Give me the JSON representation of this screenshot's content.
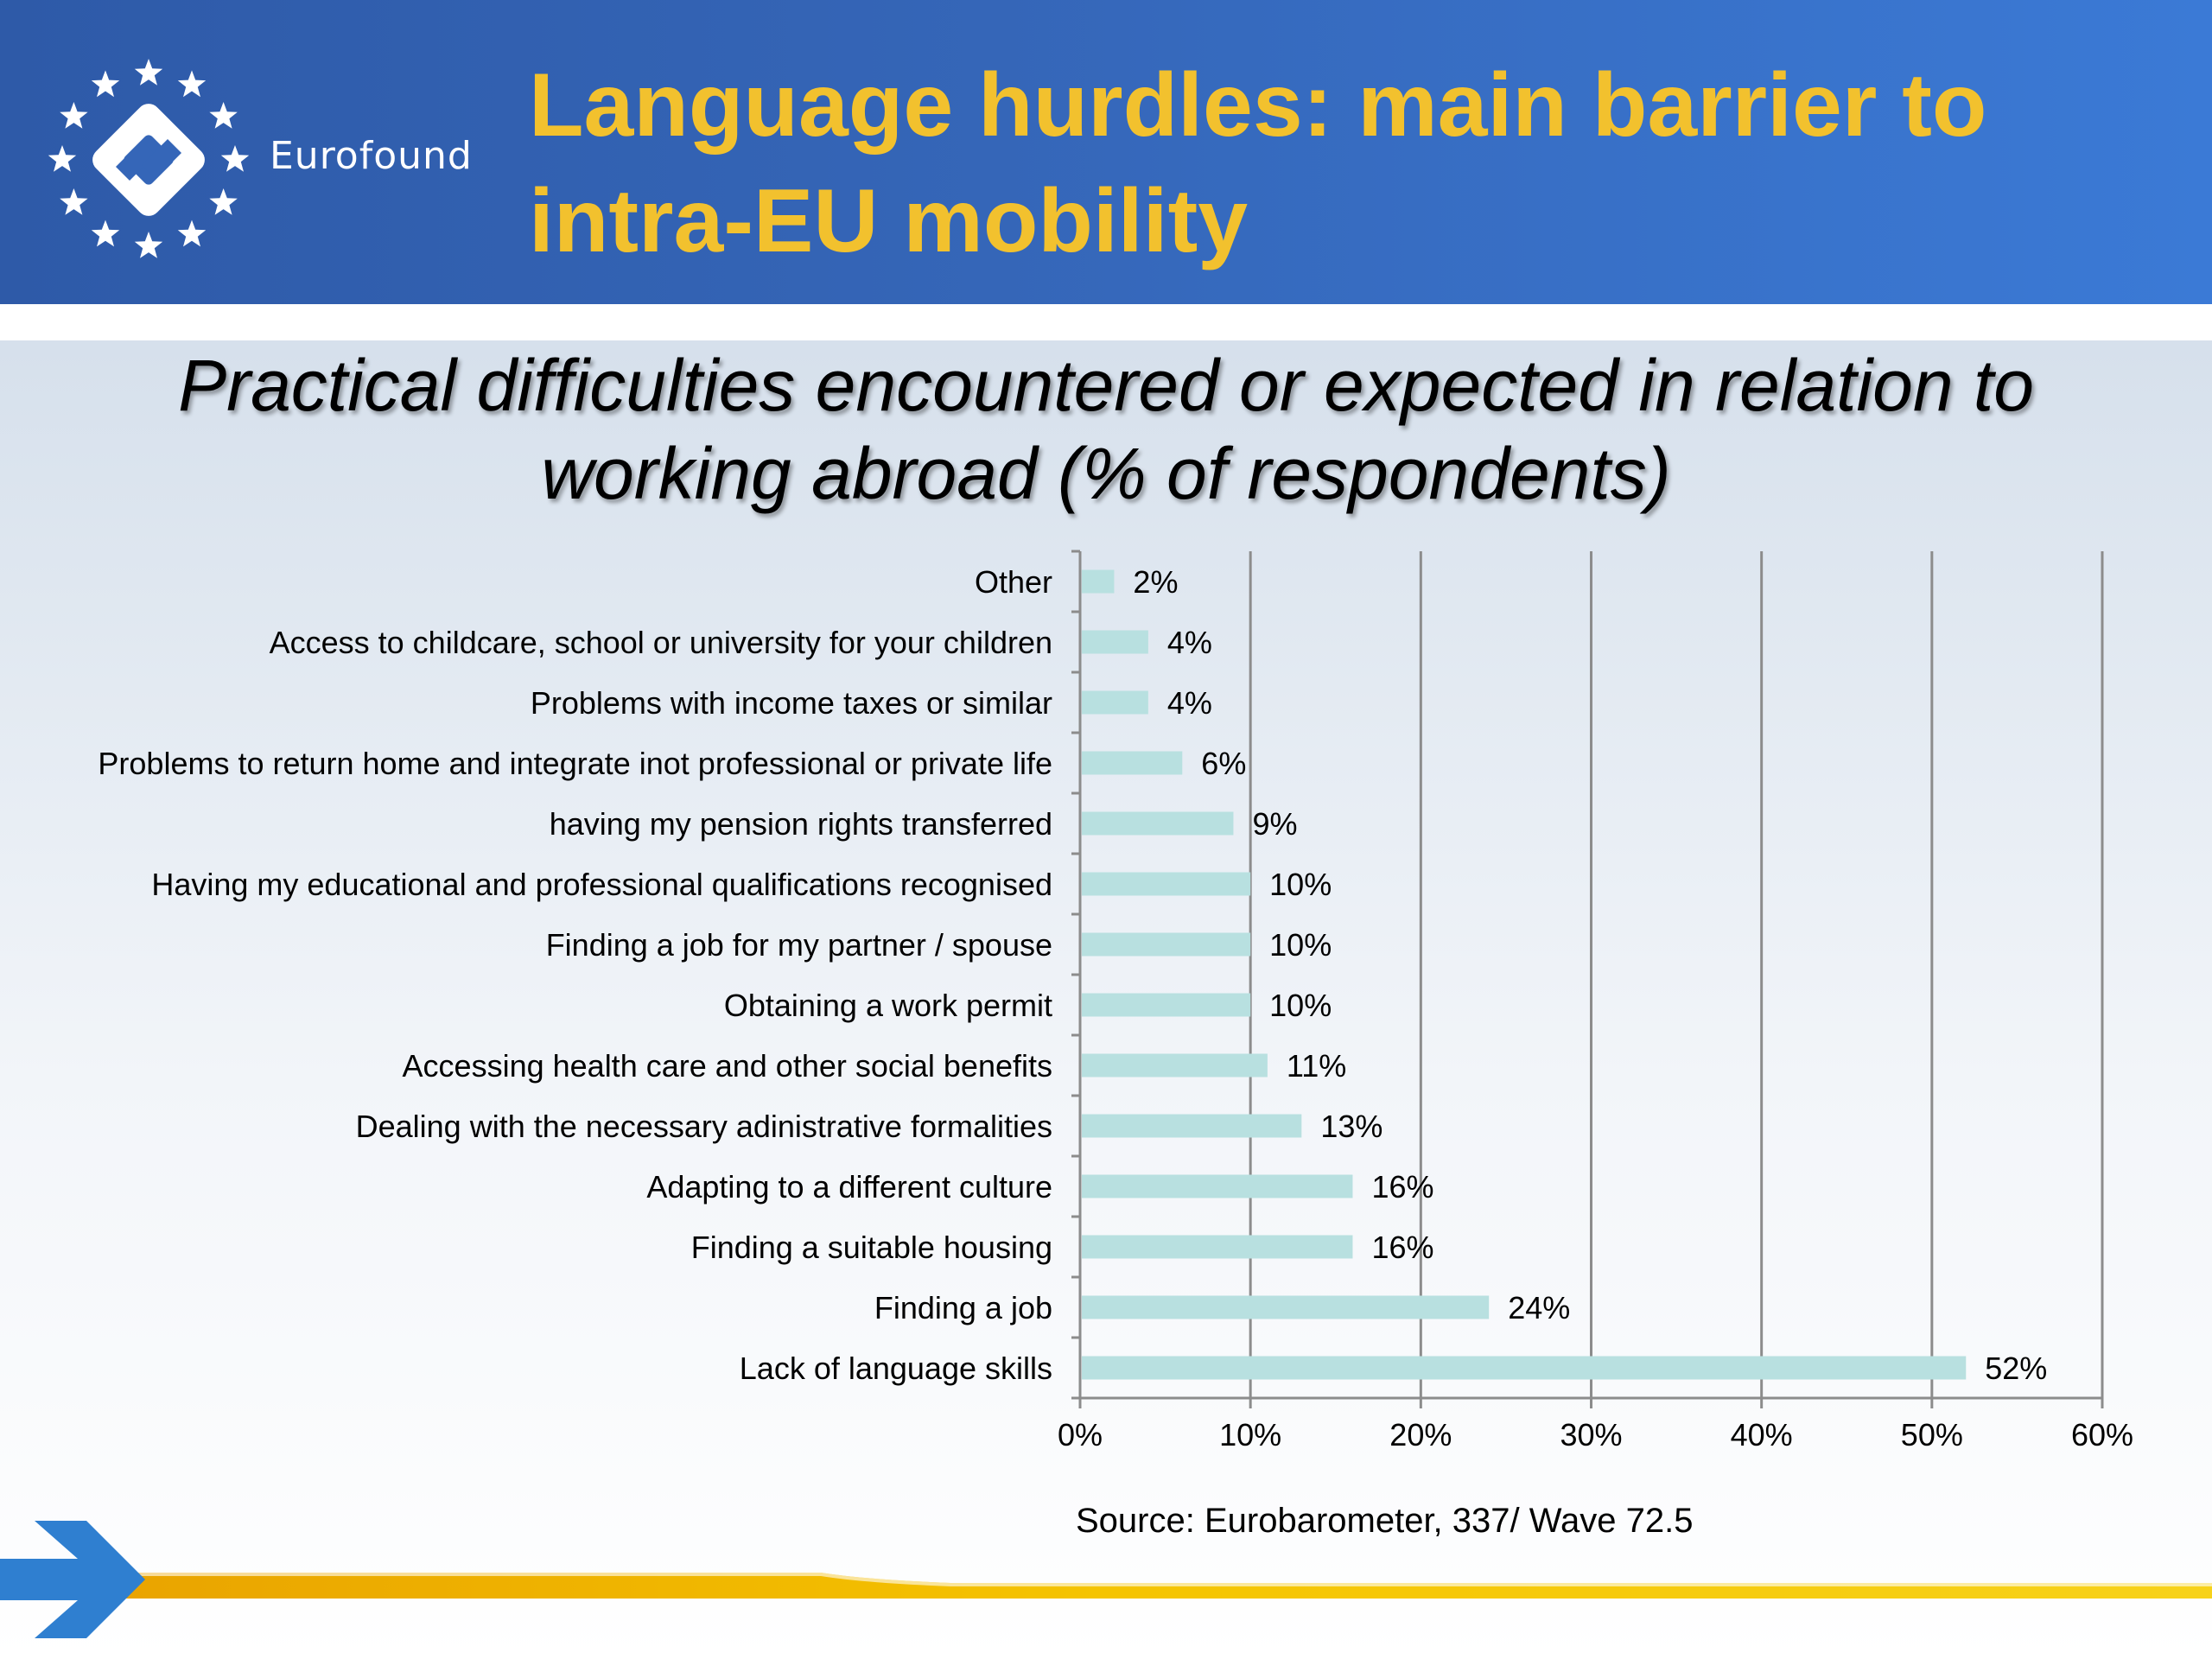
{
  "header": {
    "logo_text": "Eurofound",
    "title_line1": "Language hurdles: main barrier to",
    "title_line2": "intra-EU mobility"
  },
  "chart_data": {
    "type": "bar",
    "orientation": "horizontal",
    "title": "Practical difficulties encountered or expected in relation to working abroad (% of respondents)",
    "title_line1": "Practical difficulties encountered or expected in relation to",
    "title_line2": "working abroad (% of respondents)",
    "categories": [
      "Other",
      "Access to childcare, school or university for your children",
      "Problems with income taxes or similar",
      "Problems to return home and integrate inot professional or private life",
      "having my pension rights transferred",
      "Having my educational and professional qualifications recognised",
      "Finding a job for my partner / spouse",
      "Obtaining a work permit",
      "Accessing health care and other social benefits",
      "Dealing with the necessary adinistrative formalities",
      "Adapting to a different culture",
      "Finding a suitable housing",
      "Finding a job",
      "Lack of language skills"
    ],
    "values": [
      2,
      4,
      4,
      6,
      9,
      10,
      10,
      10,
      11,
      13,
      16,
      16,
      24,
      52
    ],
    "data_labels": [
      "2%",
      "4%",
      "4%",
      "6%",
      "9%",
      "10%",
      "10%",
      "10%",
      "11%",
      "13%",
      "16%",
      "16%",
      "24%",
      "52%"
    ],
    "xlim": [
      0,
      60
    ],
    "x_ticks": [
      0,
      10,
      20,
      30,
      40,
      50,
      60
    ],
    "x_tick_labels": [
      "0%",
      "10%",
      "20%",
      "30%",
      "40%",
      "50%",
      "60%"
    ],
    "grid": "vertical",
    "legend": "none",
    "colors": {
      "bar": "#b8e0e0",
      "grid": "#8c8c8c",
      "axis": "#8c8c8c"
    },
    "source": "Source: Eurobarometer, 337/ Wave 72.5"
  },
  "colors": {
    "header_blue": "#3566b8",
    "title_yellow": "#f2c12e",
    "arrow_blue": "#2f7fd0",
    "bar_yellow": "#f5c400"
  },
  "icons": {
    "logo": "eurofound-logo-icon",
    "arrow": "arrow-right-icon"
  }
}
